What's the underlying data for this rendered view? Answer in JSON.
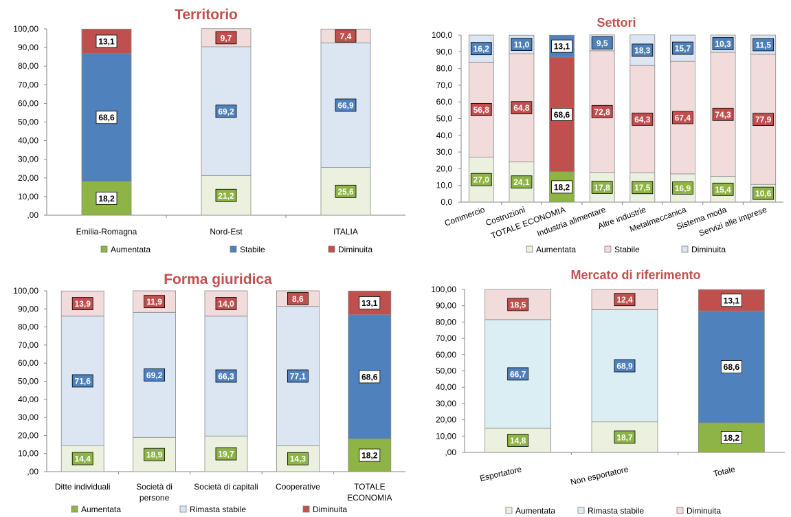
{
  "colors": {
    "aum_dark": "#8db444",
    "aum_light": "#ebf1de",
    "stab_dark": "#4f81bd",
    "stab_light": "#dce6f2",
    "stab_cyan": "#dbeef4",
    "dim_dark": "#c0504d",
    "dim_light": "#f2dcdb",
    "axis": "#868686"
  },
  "chart_data": [
    {
      "id": "territorio",
      "type": "bar",
      "stacked": true,
      "title": "Territorio",
      "categories": [
        "Emilia-Romagna",
        "Nord-Est",
        "ITALIA"
      ],
      "series": [
        {
          "name": "Aumentata",
          "values": [
            18.2,
            21.2,
            25.6
          ]
        },
        {
          "name": "Stabile",
          "values": [
            68.6,
            69.2,
            66.9
          ]
        },
        {
          "name": "Diminuita",
          "values": [
            13.1,
            9.7,
            7.4
          ]
        }
      ],
      "bar_fills": [
        [
          "aum_dark",
          "stab_dark",
          "dim_dark"
        ],
        [
          "aum_light",
          "stab_light",
          "dim_light"
        ],
        [
          "aum_light",
          "stab_light",
          "dim_light"
        ]
      ],
      "ylim": [
        0,
        100
      ],
      "yticks": [
        ",00",
        "10,00",
        "20,00",
        "30,00",
        "40,00",
        "50,00",
        "60,00",
        "70,00",
        "80,00",
        "90,00",
        "100,00"
      ],
      "legend": [
        {
          "name": "Aumentata",
          "color": "aum_dark"
        },
        {
          "name": "Stabile",
          "color": "stab_dark"
        },
        {
          "name": "Diminuita",
          "color": "dim_dark"
        }
      ],
      "grid": false,
      "legend_position": "bottom"
    },
    {
      "id": "settori",
      "type": "bar",
      "stacked": true,
      "title": "Settori",
      "categories": [
        "Commercio",
        "Costruzioni",
        "TOTALE  ECONOMIA",
        "Industria  alimentare",
        "Altre industrie",
        "Metalmeccanica",
        "Sistema moda",
        "Servizi alle imprese"
      ],
      "series": [
        {
          "name": "Aumentata",
          "values": [
            27.0,
            24.1,
            18.2,
            17.8,
            17.5,
            16.9,
            15.4,
            10.6
          ]
        },
        {
          "name": "Stabile",
          "values": [
            56.8,
            64.8,
            68.6,
            72.8,
            64.3,
            67.4,
            74.3,
            77.9
          ]
        },
        {
          "name": "Diminuita",
          "values": [
            16.2,
            11.0,
            13.1,
            9.5,
            18.3,
            15.7,
            10.3,
            11.5
          ]
        }
      ],
      "bar_fills": [
        [
          "aum_light",
          "dim_light",
          "stab_light"
        ],
        [
          "aum_light",
          "dim_light",
          "stab_light"
        ],
        [
          "aum_dark",
          "dim_dark",
          "stab_dark"
        ],
        [
          "aum_light",
          "dim_light",
          "stab_light"
        ],
        [
          "aum_light",
          "dim_light",
          "stab_light"
        ],
        [
          "aum_light",
          "dim_light",
          "stab_light"
        ],
        [
          "aum_light",
          "dim_light",
          "stab_light"
        ],
        [
          "aum_light",
          "dim_light",
          "stab_light"
        ]
      ],
      "ylim": [
        0,
        100
      ],
      "yticks": [
        "0,0",
        "10,0",
        "20,0",
        "30,0",
        "40,0",
        "50,0",
        "60,0",
        "70,0",
        "80,0",
        "90,0",
        "100,0"
      ],
      "legend": [
        {
          "name": "Aumentata",
          "color": "aum_light"
        },
        {
          "name": "Stabile",
          "color": "dim_light"
        },
        {
          "name": "Diminuita",
          "color": "stab_light"
        }
      ],
      "grid": false,
      "legend_position": "bottom"
    },
    {
      "id": "forma",
      "type": "bar",
      "stacked": true,
      "title": "Forma giuridica",
      "categories": [
        "Ditte individuali",
        "Società di persone",
        "Società di capitali",
        "Cooperative",
        "TOTALE ECONOMIA"
      ],
      "series": [
        {
          "name": "Aumentata",
          "values": [
            14.4,
            18.9,
            19.7,
            14.3,
            18.2
          ]
        },
        {
          "name": "Rimasta stabile",
          "values": [
            71.6,
            69.2,
            66.3,
            77.1,
            68.6
          ]
        },
        {
          "name": "Diminuita",
          "values": [
            13.9,
            11.9,
            14.0,
            8.6,
            13.1
          ]
        }
      ],
      "bar_fills": [
        [
          "aum_light",
          "stab_light",
          "dim_light"
        ],
        [
          "aum_light",
          "stab_light",
          "dim_light"
        ],
        [
          "aum_light",
          "stab_light",
          "dim_light"
        ],
        [
          "aum_light",
          "stab_light",
          "dim_light"
        ],
        [
          "aum_dark",
          "stab_dark",
          "dim_dark"
        ]
      ],
      "ylim": [
        0,
        100
      ],
      "yticks": [
        ",00",
        "10,00",
        "20,00",
        "30,00",
        "40,00",
        "50,00",
        "60,00",
        "70,00",
        "80,00",
        "90,00",
        "100,00"
      ],
      "legend": [
        {
          "name": "Aumentata",
          "color": "aum_dark"
        },
        {
          "name": "Rimasta stabile",
          "color": "stab_light"
        },
        {
          "name": "Diminuita",
          "color": "dim_dark"
        }
      ],
      "grid": false,
      "legend_position": "bottom"
    },
    {
      "id": "mercato",
      "type": "bar",
      "stacked": true,
      "title": "Mercato di riferimento",
      "categories": [
        "Esportatore",
        "Non esportatore",
        "Totale"
      ],
      "series": [
        {
          "name": "Aumentata",
          "values": [
            14.8,
            18.7,
            18.2
          ]
        },
        {
          "name": "Rimasta stabile",
          "values": [
            66.7,
            68.9,
            68.6
          ]
        },
        {
          "name": "Diminuita",
          "values": [
            18.5,
            12.4,
            13.1
          ]
        }
      ],
      "bar_fills": [
        [
          "aum_light",
          "stab_cyan",
          "dim_light"
        ],
        [
          "aum_light",
          "stab_cyan",
          "dim_light"
        ],
        [
          "aum_dark",
          "stab_dark",
          "dim_dark"
        ]
      ],
      "ylim": [
        0,
        100
      ],
      "yticks": [
        ",00",
        "10,00",
        "20,00",
        "30,00",
        "40,00",
        "50,00",
        "60,00",
        "70,00",
        "80,00",
        "90,00",
        "100,00"
      ],
      "legend": [
        {
          "name": "Aumentata",
          "color": "aum_light"
        },
        {
          "name": "Rimasta stabile",
          "color": "stab_cyan"
        },
        {
          "name": "Diminuita",
          "color": "dim_light"
        }
      ],
      "grid": false,
      "legend_position": "bottom"
    }
  ]
}
